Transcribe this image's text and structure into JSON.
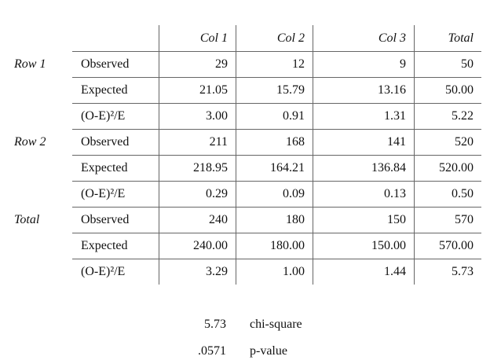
{
  "table": {
    "header": [
      "Col 1",
      "Col 2",
      "Col 3",
      "Total"
    ],
    "groups": [
      {
        "label": "Row 1",
        "rows": [
          {
            "measure": "Observed",
            "values": [
              "29",
              "12",
              "9",
              "50"
            ]
          },
          {
            "measure": "Expected",
            "values": [
              "21.05",
              "15.79",
              "13.16",
              "50.00"
            ]
          },
          {
            "measure": "(O-E)²/E",
            "values": [
              "3.00",
              "0.91",
              "1.31",
              "5.22"
            ]
          }
        ]
      },
      {
        "label": "Row 2",
        "rows": [
          {
            "measure": "Observed",
            "values": [
              "211",
              "168",
              "141",
              "520"
            ]
          },
          {
            "measure": "Expected",
            "values": [
              "218.95",
              "164.21",
              "136.84",
              "520.00"
            ]
          },
          {
            "measure": "(O-E)²/E",
            "values": [
              "0.29",
              "0.09",
              "0.13",
              "0.50"
            ]
          }
        ]
      },
      {
        "label": "Total",
        "rows": [
          {
            "measure": "Observed",
            "values": [
              "240",
              "180",
              "150",
              "570"
            ]
          },
          {
            "measure": "Expected",
            "values": [
              "240.00",
              "180.00",
              "150.00",
              "570.00"
            ]
          },
          {
            "measure": "(O-E)²/E",
            "values": [
              "3.29",
              "1.00",
              "1.44",
              "5.73"
            ]
          }
        ]
      }
    ]
  },
  "stats": [
    {
      "value": "5.73",
      "label": "chi-square"
    },
    {
      "value": ".0571",
      "label": "p-value"
    }
  ]
}
